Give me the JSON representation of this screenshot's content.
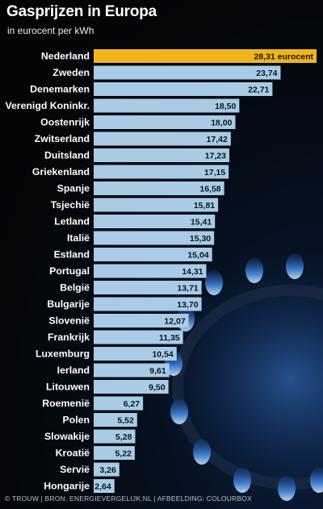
{
  "title": "Gasprijzen in Europa",
  "subtitle": "in eurocent per kWh",
  "credits": "© TROUW | BRON: ENERGIEVERGELIJK.NL | AFBEELDING: COLOURBOX",
  "colors": {
    "highlight_bar": "#f1b51b",
    "bar": "#a9cbe5",
    "background": "#05070c",
    "text": "#ffffff"
  },
  "chart_data": {
    "type": "bar",
    "orientation": "horizontal",
    "title": "Gasprijzen in Europa",
    "subtitle": "in eurocent per kWh",
    "categories": [
      "Nederland",
      "Zweden",
      "Denemarken",
      "Verenigd Koninkr.",
      "Oostenrijk",
      "Zwitserland",
      "Duitsland",
      "Griekenland",
      "Spanje",
      "Tsjechië",
      "Letland",
      "Italië",
      "Estland",
      "Portugal",
      "België",
      "Bulgarije",
      "Slovenië",
      "Frankrijk",
      "Luxemburg",
      "Ierland",
      "Litouwen",
      "Roemenië",
      "Polen",
      "Slowakije",
      "Kroatië",
      "Servië",
      "Hongarije"
    ],
    "values": [
      28.31,
      23.74,
      22.71,
      18.5,
      18.0,
      17.42,
      17.23,
      17.15,
      16.58,
      15.81,
      15.41,
      15.3,
      15.04,
      14.31,
      13.71,
      13.7,
      12.07,
      11.35,
      10.54,
      9.61,
      9.5,
      6.27,
      5.52,
      5.28,
      5.22,
      3.26,
      2.64
    ],
    "value_labels": [
      "28,31 eurocent",
      "23,74",
      "22,71",
      "18,50",
      "18,00",
      "17,42",
      "17,23",
      "17,15",
      "16,58",
      "15,81",
      "15,41",
      "15,30",
      "15,04",
      "14,31",
      "13,71",
      "13,70",
      "12,07",
      "11,35",
      "10,54",
      "9,61",
      "9,50",
      "6,27",
      "5,52",
      "5,28",
      "5,22",
      "3,26",
      "2,64"
    ],
    "highlight_index": 0,
    "xlim": [
      0,
      28.31
    ],
    "grid": false,
    "legend": "none"
  }
}
